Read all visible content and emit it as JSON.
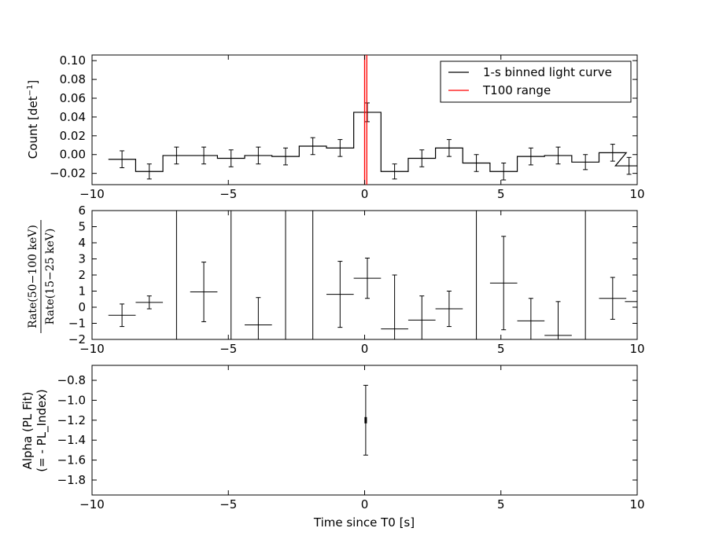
{
  "chart_data": [
    {
      "type": "line",
      "ylabel": "Count [det",
      "ylabel_sup": "−1",
      "ylabel_tail": "]",
      "xlim": [
        -10,
        10
      ],
      "ylim": [
        -0.032,
        0.106
      ],
      "yticks": [
        -0.02,
        0.0,
        0.02,
        0.04,
        0.06,
        0.08,
        0.1
      ],
      "ytick_labels": [
        "−0.02",
        "0.00",
        "0.02",
        "0.04",
        "0.06",
        "0.08",
        "0.10"
      ],
      "xticks": [
        -10,
        -5,
        0,
        5,
        10
      ],
      "xtick_labels": [
        "−10",
        "−5",
        "0",
        "5",
        "10"
      ],
      "legend": {
        "position": "top-right",
        "entries": [
          {
            "label": "1-s binned light curve",
            "color": "#000000"
          },
          {
            "label": "T100 range",
            "color": "#ff0000"
          }
        ]
      },
      "t100_range": [
        0.0,
        0.08
      ],
      "series": [
        {
          "name": "1-s binned light curve",
          "color": "#000000",
          "bin_width": 1.0,
          "x": [
            -8.9,
            -7.9,
            -6.9,
            -5.9,
            -4.9,
            -3.9,
            -2.9,
            -1.9,
            -0.9,
            0.1,
            1.1,
            2.1,
            3.1,
            4.1,
            5.1,
            6.1,
            7.1,
            8.1,
            9.1,
            9.7
          ],
          "y": [
            -0.005,
            -0.018,
            -0.001,
            -0.001,
            -0.004,
            -0.001,
            -0.002,
            0.009,
            0.007,
            0.045,
            -0.018,
            -0.004,
            0.007,
            -0.009,
            -0.018,
            -0.002,
            -0.001,
            -0.008,
            0.002,
            -0.012
          ],
          "yerr": [
            0.009,
            0.008,
            0.009,
            0.009,
            0.009,
            0.009,
            0.009,
            0.009,
            0.009,
            0.01,
            0.008,
            0.009,
            0.009,
            0.009,
            0.009,
            0.009,
            0.009,
            0.008,
            0.009,
            0.009
          ]
        }
      ]
    },
    {
      "type": "scatter",
      "ylabel_num": "Rate(50−100 keV)",
      "ylabel_den": "Rate(15−25 keV)",
      "xlim": [
        -10,
        10
      ],
      "ylim": [
        -2,
        6
      ],
      "yticks": [
        -2,
        -1,
        0,
        1,
        2,
        3,
        4,
        5,
        6
      ],
      "ytick_labels": [
        "−2",
        "−1",
        "0",
        "1",
        "2",
        "3",
        "4",
        "5",
        "6"
      ],
      "xticks": [
        -10,
        -5,
        0,
        5,
        10
      ],
      "xtick_labels": [
        "−10",
        "−5",
        "0",
        "5",
        "10"
      ],
      "vertical_lines_x": [
        -6.9,
        -4.9,
        -2.9,
        -1.9,
        4.1,
        8.1
      ],
      "series": [
        {
          "name": "",
          "color": "#000000",
          "x": [
            -8.9,
            -7.9,
            -5.9,
            -3.9,
            -0.9,
            0.1,
            1.1,
            2.1,
            3.1,
            5.1,
            6.1,
            7.1,
            9.1,
            9.8
          ],
          "xerr": [
            0.5,
            0.5,
            0.5,
            0.5,
            0.5,
            0.5,
            0.5,
            0.5,
            0.5,
            0.5,
            0.5,
            0.5,
            0.5,
            0.25
          ],
          "y": [
            -0.5,
            0.3,
            0.95,
            -1.1,
            0.8,
            1.8,
            -1.35,
            -0.8,
            -0.1,
            1.5,
            -0.85,
            -1.75,
            0.55,
            0.35
          ],
          "yerr": [
            0.7,
            0.4,
            1.85,
            1.7,
            2.05,
            1.25,
            3.35,
            1.5,
            1.1,
            2.9,
            1.4,
            2.1,
            1.3,
            0.0
          ]
        }
      ]
    },
    {
      "type": "scatter",
      "ylabel_line1": "Alpha (PL Fit)",
      "ylabel_line2": "(= - PL_Index)",
      "xlabel": "Time since T0 [s]",
      "xlim": [
        -10,
        10
      ],
      "ylim": [
        -1.95,
        -0.65
      ],
      "yticks": [
        -1.8,
        -1.6,
        -1.4,
        -1.2,
        -1.0,
        -0.8
      ],
      "ytick_labels": [
        "−1.8",
        "−1.6",
        "−1.4",
        "−1.2",
        "−1.0",
        "−0.8"
      ],
      "xticks": [
        -10,
        -5,
        0,
        5,
        10
      ],
      "xtick_labels": [
        "−10",
        "−5",
        "0",
        "5",
        "10"
      ],
      "series": [
        {
          "name": "",
          "color": "#000000",
          "x": [
            0.04
          ],
          "xerr": [
            0.04
          ],
          "y": [
            -1.2
          ],
          "yerr_low": [
            0.35
          ],
          "yerr_high": [
            0.35
          ]
        }
      ]
    }
  ]
}
